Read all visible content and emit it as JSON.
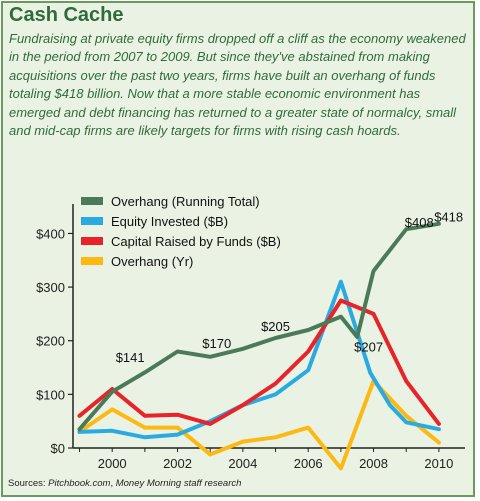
{
  "header": {
    "title": "Cash Cache",
    "description": "Fundraising at private equity firms dropped off a cliff as the economy weakened in the period from 2007 to 2009.  But since they've abstained from making acquisitions over the past two years, firms have built an overhang of funds totaling $418 billion. Now that a more stable economic environment has emerged and debt financing has returned to a greater state of normalcy, small and mid-cap firms are likely targets for firms with rising cash hoards."
  },
  "footer": {
    "label": "Sources: ",
    "source_one": "Pitchbook.com",
    "separator": ", ",
    "source_two": "Money Morning staff research"
  },
  "colors": {
    "running_total": "#4a7a5a",
    "equity_invested": "#29abe2",
    "capital_raised": "#e8232a",
    "overhang_yr": "#fdb913",
    "axis": "#222222",
    "frame": "#6a9a5c"
  },
  "chart_data": {
    "type": "line",
    "xlim": [
      1998.8,
      2010.8
    ],
    "ylim": [
      0,
      440
    ],
    "xticks": [
      2000,
      2002,
      2004,
      2006,
      2008,
      2010
    ],
    "xtick_labels": [
      "2000",
      "2002",
      "2004",
      "2006",
      "2008",
      "2010"
    ],
    "yticks": [
      0,
      100,
      200,
      300,
      400
    ],
    "ytick_labels": [
      "$0",
      "$100",
      "$200",
      "$300",
      "$400"
    ],
    "grid": false,
    "legend_position": "top-left",
    "series": [
      {
        "name": "Overhang (Running Total)",
        "color": "#4a7a5a",
        "x": [
          1999,
          2000,
          2001,
          2002,
          2003,
          2004,
          2005,
          2006,
          2007,
          2007.5,
          2008,
          2009,
          2010
        ],
        "values": [
          35,
          105,
          141,
          180,
          170,
          185,
          205,
          220,
          245,
          207,
          330,
          408,
          418
        ]
      },
      {
        "name": "Equity Invested ($B)",
        "color": "#29abe2",
        "x": [
          1999,
          2000,
          2001,
          2002,
          2003,
          2004,
          2005,
          2006,
          2007,
          2007.9,
          2008.5,
          2009,
          2010
        ],
        "values": [
          30,
          32,
          20,
          25,
          50,
          80,
          100,
          145,
          310,
          140,
          80,
          48,
          35
        ]
      },
      {
        "name": "Capital Raised by Funds ($B)",
        "color": "#e8232a",
        "x": [
          1999,
          2000,
          2001,
          2002,
          2003,
          2004,
          2005,
          2006,
          2007,
          2008,
          2009,
          2010
        ],
        "values": [
          60,
          110,
          60,
          62,
          45,
          80,
          120,
          180,
          275,
          250,
          125,
          45
        ]
      },
      {
        "name": "Overhang (Yr)",
        "color": "#fdb913",
        "x": [
          1999,
          2000,
          2001,
          2002,
          2003,
          2004,
          2005,
          2006,
          2007,
          2008,
          2009,
          2010
        ],
        "values": [
          30,
          72,
          38,
          38,
          -12,
          12,
          20,
          38,
          -38,
          125,
          60,
          10
        ]
      }
    ],
    "annotations": [
      {
        "text": "$141",
        "x": 2000.55,
        "y": 160
      },
      {
        "text": "$170",
        "x": 2003.2,
        "y": 186
      },
      {
        "text": "$205",
        "x": 2005.0,
        "y": 218
      },
      {
        "text": "$207",
        "x": 2007.85,
        "y": 180
      },
      {
        "text": "$408",
        "x": 2009.4,
        "y": 412
      },
      {
        "text": "$418",
        "x": 2010.3,
        "y": 422
      }
    ]
  }
}
